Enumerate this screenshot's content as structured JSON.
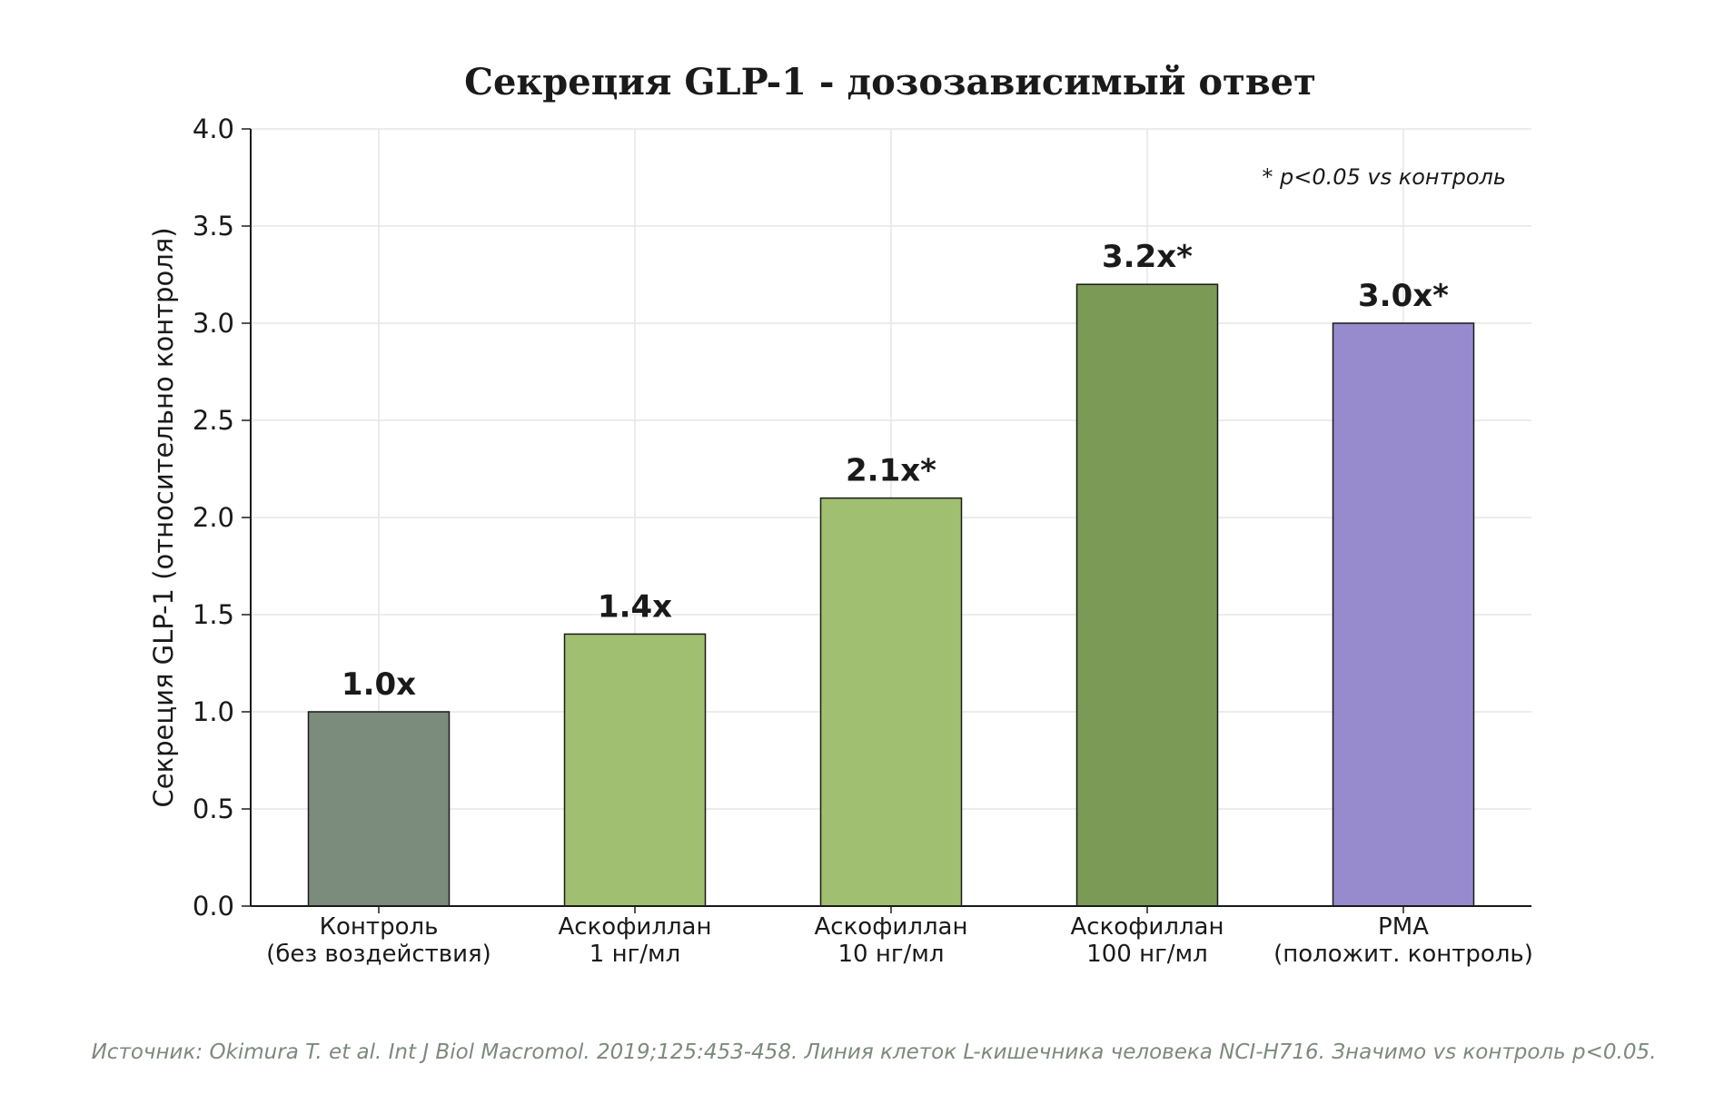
{
  "chart_data": {
    "type": "bar",
    "title": "Секреция GLP-1 - дозозависимый ответ",
    "ylabel": "Секреция GLP-1 (относительно контроля)",
    "xlabel": "",
    "ylim": [
      0,
      4.0
    ],
    "yticks": [
      "0.0",
      "0.5",
      "1.0",
      "1.5",
      "2.0",
      "2.5",
      "3.0",
      "3.5",
      "4.0"
    ],
    "grid": true,
    "categories": [
      [
        "Контроль",
        "(без воздействия)"
      ],
      [
        "Аскофиллан",
        "1 нг/мл"
      ],
      [
        "Аскофиллан",
        "10 нг/мл"
      ],
      [
        "Аскофиллан",
        "100 нг/мл"
      ],
      [
        "PMA",
        "(положит. контроль)"
      ]
    ],
    "values": [
      1.0,
      1.4,
      2.1,
      3.2,
      3.0
    ],
    "data_labels": [
      "1.0x",
      "1.4x",
      "2.1x*",
      "3.2x*",
      "3.0x*"
    ],
    "colors": [
      "#7b8b7c",
      "#a0bf71",
      "#a0bf71",
      "#7b9a56",
      "#978acd"
    ],
    "annotation": "* p<0.05 vs контроль",
    "source": "Источник: Okimura T. et al. Int J Biol Macromol. 2019;125:453-458. Линия клеток L-кишечника человека NCI-H716. Значимо vs контроль p<0.05."
  }
}
